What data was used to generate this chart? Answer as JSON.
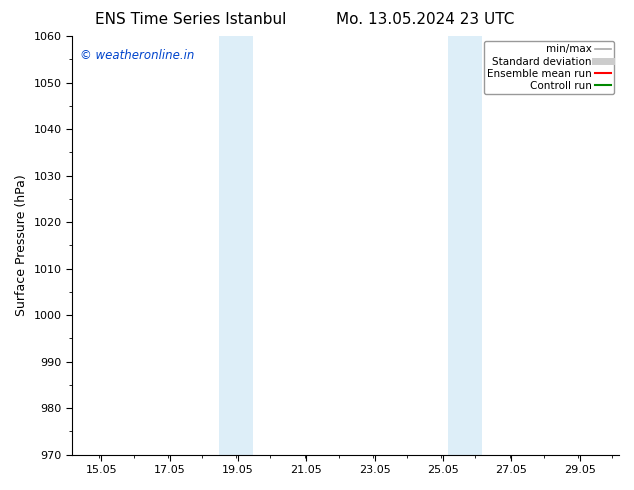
{
  "title_left": "ENS Time Series Istanbul",
  "title_right": "Mo. 13.05.2024 23 UTC",
  "ylabel": "Surface Pressure (hPa)",
  "ylim": [
    970,
    1060
  ],
  "yticks": [
    970,
    980,
    990,
    1000,
    1010,
    1020,
    1030,
    1040,
    1050,
    1060
  ],
  "xlim_start": 14.2,
  "xlim_end": 30.2,
  "xticks": [
    15.05,
    17.05,
    19.05,
    21.05,
    23.05,
    25.05,
    27.05,
    29.05
  ],
  "xtick_labels": [
    "15.05",
    "17.05",
    "19.05",
    "21.05",
    "23.05",
    "25.05",
    "27.05",
    "29.05"
  ],
  "shaded_regions": [
    {
      "x_start": 18.5,
      "x_end": 19.5,
      "color": "#ddeef8"
    },
    {
      "x_start": 25.2,
      "x_end": 26.2,
      "color": "#ddeef8"
    }
  ],
  "watermark": "© weatheronline.in",
  "watermark_color": "#0044cc",
  "background_color": "#ffffff",
  "legend_items": [
    {
      "label": "min/max",
      "color": "#aaaaaa",
      "lw": 1.2,
      "ls": "-"
    },
    {
      "label": "Standard deviation",
      "color": "#cccccc",
      "lw": 5,
      "ls": "-"
    },
    {
      "label": "Ensemble mean run",
      "color": "#ff0000",
      "lw": 1.5,
      "ls": "-"
    },
    {
      "label": "Controll run",
      "color": "#008800",
      "lw": 1.5,
      "ls": "-"
    }
  ],
  "title_fontsize": 11,
  "tick_fontsize": 8,
  "ylabel_fontsize": 9,
  "legend_fontsize": 7.5
}
